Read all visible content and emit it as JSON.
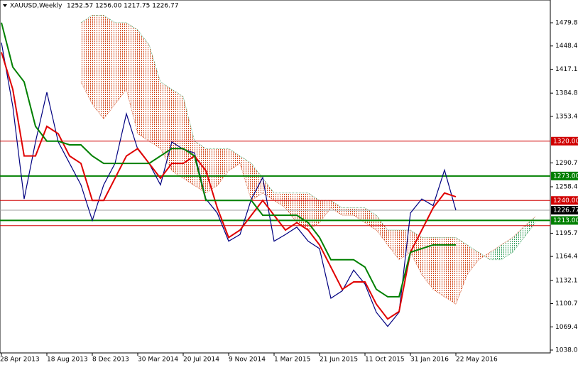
{
  "chart_data": {
    "type": "line",
    "title": "XAUUSD,Weekly",
    "subtitle": "1252.57 1256.00 1217.75 1226.77",
    "categories": [
      "28 Apr 2013",
      null,
      null,
      null,
      "18 Aug 2013",
      null,
      null,
      null,
      "8 Dec 2013",
      null,
      null,
      null,
      "30 Mar 2014",
      null,
      null,
      null,
      "20 Jul 2014",
      null,
      null,
      null,
      "9 Nov 2014",
      null,
      null,
      null,
      "1 Mar 2015",
      null,
      null,
      null,
      "21 Jun 2015",
      null,
      null,
      null,
      "11 Oct 2015",
      null,
      null,
      null,
      "31 Jan 2016",
      null,
      null,
      null,
      "22 May 2016",
      null,
      null,
      null,
      null,
      null,
      null,
      null
    ],
    "series": [
      {
        "color": "#000080",
        "values": [
          1453,
          1367,
          1242,
          1319,
          1386,
          1319,
          1290,
          1261,
          1213,
          1261,
          1290,
          1357,
          1309,
          1290,
          1261,
          1319,
          1309,
          1304,
          1242,
          1223,
          1185,
          1194,
          1242,
          1271,
          1185,
          1194,
          1204,
          1185,
          1175,
          1108,
          1118,
          1146,
          1127,
          1089,
          1070,
          1089,
          1223,
          1242,
          1233,
          1281,
          1226.77,
          null,
          null,
          null,
          null,
          null,
          null,
          null
        ]
      },
      {
        "color": "#e00000",
        "values": [
          1440,
          1390,
          1300,
          1300,
          1340,
          1330,
          1300,
          1290,
          1240,
          1240,
          1270,
          1300,
          1310,
          1290,
          1270,
          1290,
          1290,
          1300,
          1280,
          1230,
          1190,
          1200,
          1220,
          1240,
          1220,
          1200,
          1210,
          1200,
          1180,
          1150,
          1120,
          1130,
          1130,
          1100,
          1080,
          1090,
          1170,
          1200,
          1230,
          1250,
          1245,
          null,
          null,
          null,
          null,
          null,
          null,
          null
        ]
      },
      {
        "color": "#008000",
        "values": [
          1480,
          1420,
          1400,
          1340,
          1320,
          1320,
          1315,
          1315,
          1300,
          1290,
          1290,
          1290,
          1290,
          1290,
          1300,
          1310,
          1310,
          1300,
          1240,
          1240,
          1240,
          1240,
          1240,
          1220,
          1220,
          1220,
          1220,
          1210,
          1190,
          1160,
          1160,
          1160,
          1150,
          1120,
          1110,
          1110,
          1170,
          1175,
          1180,
          1180,
          1180,
          null,
          null,
          null,
          null,
          null,
          null,
          null
        ]
      }
    ],
    "cloud": {
      "colors": [
        "#d24a1e",
        "#3aa060"
      ],
      "span_a": [
        null,
        null,
        null,
        null,
        null,
        null,
        null,
        1400,
        1370,
        1350,
        1370,
        1390,
        1330,
        1320,
        1310,
        1280,
        1270,
        1260,
        1250,
        1260,
        1280,
        1290,
        1240,
        1250,
        1240,
        1230,
        1210,
        1200,
        1210,
        1230,
        1220,
        1220,
        1210,
        1200,
        1180,
        1160,
        1170,
        1140,
        1120,
        1110,
        1100,
        1140,
        1160,
        1170,
        1180,
        1190,
        1205,
        1218
      ],
      "span_b": [
        null,
        null,
        null,
        null,
        null,
        null,
        null,
        1480,
        1490,
        1490,
        1480,
        1480,
        1470,
        1450,
        1400,
        1390,
        1380,
        1320,
        1310,
        1310,
        1310,
        1300,
        1290,
        1270,
        1250,
        1250,
        1250,
        1250,
        1240,
        1240,
        1230,
        1230,
        1230,
        1220,
        1200,
        1200,
        1200,
        1190,
        1190,
        1190,
        1190,
        1180,
        1170,
        1160,
        1160,
        1170,
        1190,
        1210
      ]
    },
    "levels": [
      {
        "value": 1320,
        "label": "1320.00",
        "color": "#d00000"
      },
      {
        "value": 1273,
        "label": "1273.00",
        "color": "#008000"
      },
      {
        "value": 1240,
        "label": "1240.00",
        "color": "#d00000"
      },
      {
        "value": 1226.77,
        "color": "#000000"
      },
      {
        "value": 1213,
        "label": "1213.00",
        "color": "#008000"
      },
      {
        "value": 1206,
        "color": "#d00000"
      }
    ],
    "ylim": [
      1034.2,
      1510.5
    ],
    "yticks": [
      {
        "value": 1479.8,
        "label": "1479.80"
      },
      1448.45,
      {
        "value": 1417.1,
        "label": "1417.10"
      },
      {
        "value": 1384.8,
        "label": "1384.80"
      },
      1353.45,
      1290.75,
      1258.45,
      1195.75,
      {
        "value": 1164.4,
        "label": "1164.40"
      },
      {
        "value": 1132.1,
        "label": "1132.10"
      },
      1100.75,
      {
        "value": 1069.4,
        "label": "1069.40"
      },
      1038.05
    ],
    "grid": false
  }
}
